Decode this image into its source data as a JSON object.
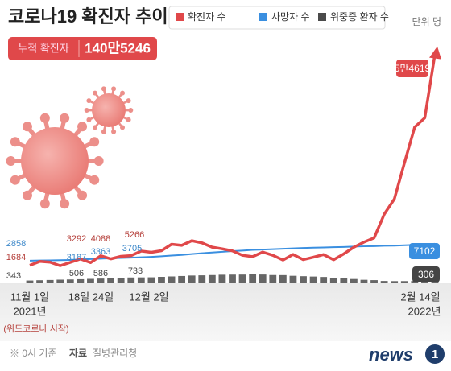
{
  "chart_data": {
    "type": "line",
    "title": "코로나19 확진자 추이",
    "unit": "단위 명",
    "cumulative_label": "누적 확진자",
    "cumulative_value": "140만5246",
    "categories": [
      "11월 1일",
      null,
      null,
      null,
      null,
      "18일",
      null,
      "24일",
      null,
      null,
      null,
      "12월 2일",
      null,
      null,
      null,
      null,
      null,
      null,
      null,
      null,
      null,
      null,
      null,
      null,
      null,
      null,
      null,
      null,
      null,
      null,
      null,
      null,
      null,
      null,
      null,
      null,
      null,
      null,
      null,
      null,
      "2월 14일"
    ],
    "annotations": [
      "2021년",
      "2022년",
      "(위드코로나 시작)"
    ],
    "ylim": [
      0,
      60000
    ],
    "y2lim": [
      0,
      6000
    ],
    "series": [
      {
        "name": "확진자 수",
        "color": "#e0484a",
        "type": "line",
        "values": [
          1684,
          2667,
          2482,
          1589,
          2422,
          3292,
          2368,
          4088,
          3309,
          3938,
          4115,
          5266,
          4944,
          5352,
          6975,
          6689,
          7850,
          7314,
          6236,
          5817,
          5318,
          4207,
          3865,
          5000,
          4206,
          3024,
          4416,
          3126,
          3716,
          4383,
          3097,
          4542,
          6236,
          7511,
          8571,
          14518,
          18342,
          27443,
          36345,
          38689,
          54619
        ],
        "value_labels": [
          "1684",
          null,
          null,
          null,
          null,
          "3292",
          null,
          "4088",
          null,
          null,
          null,
          "5266",
          null,
          null,
          null,
          null,
          null,
          null,
          null,
          null,
          null,
          null,
          null,
          null,
          null,
          null,
          null,
          null,
          null,
          null,
          null,
          null,
          null,
          null,
          null,
          null,
          null,
          null,
          null,
          null,
          "5만4619"
        ]
      },
      {
        "name": "사망자 수",
        "color": "#3a8fe0",
        "type": "line",
        "values": [
          2858,
          2893,
          2937,
          2985,
          3040,
          3187,
          3260,
          3363,
          3440,
          3530,
          3620,
          3705,
          3808,
          3957,
          4130,
          4302,
          4518,
          4721,
          4906,
          5071,
          5245,
          5382,
          5563,
          5625,
          5735,
          5838,
          5937,
          6035,
          6113,
          6166,
          6238,
          6285,
          6388,
          6452,
          6501,
          6588,
          6620,
          6712,
          6836,
          6922,
          7102
        ],
        "value_labels": [
          "2858",
          null,
          null,
          null,
          null,
          "3187",
          null,
          "3363",
          null,
          null,
          null,
          "3705",
          null,
          null,
          null,
          null,
          null,
          null,
          null,
          null,
          null,
          null,
          null,
          null,
          null,
          null,
          null,
          null,
          null,
          null,
          null,
          null,
          null,
          null,
          null,
          null,
          null,
          null,
          null,
          null,
          "7102"
        ]
      },
      {
        "name": "위중증 환자 수",
        "color": "#4a4a4a",
        "type": "bar",
        "axis": "y2",
        "values": [
          343,
          380,
          410,
          450,
          475,
          506,
          549,
          586,
          617,
          661,
          723,
          733,
          744,
          800,
          852,
          906,
          964,
          989,
          1022,
          1063,
          1078,
          1083,
          1105,
          1088,
          1024,
          1015,
          932,
          882,
          838,
          786,
          659,
          626,
          532,
          433,
          392,
          288,
          270,
          272,
          285,
          313,
          306
        ],
        "value_labels": [
          "343",
          null,
          null,
          null,
          null,
          "506",
          null,
          "586",
          null,
          null,
          null,
          "733",
          null,
          null,
          null,
          null,
          null,
          null,
          null,
          null,
          null,
          null,
          null,
          null,
          null,
          null,
          null,
          null,
          null,
          null,
          null,
          null,
          null,
          null,
          null,
          null,
          null,
          null,
          null,
          null,
          "306"
        ]
      }
    ],
    "note": "※ 0시 기준",
    "source_label": "자료",
    "source": "질병관리청",
    "logo": "news",
    "logo_mark": "1"
  }
}
